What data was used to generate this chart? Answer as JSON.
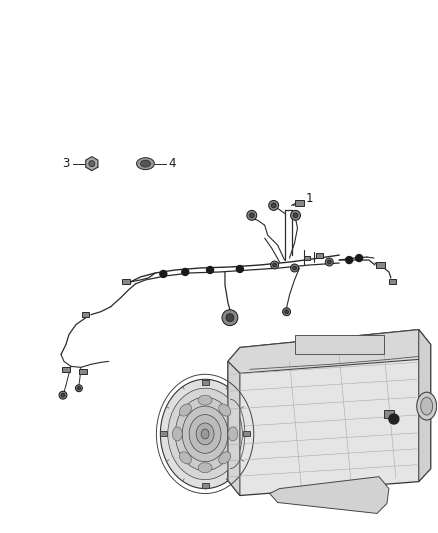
{
  "background_color": "#ffffff",
  "fig_width": 4.38,
  "fig_height": 5.33,
  "dpi": 100,
  "line_color": "#2a2a2a",
  "text_color": "#1a1a1a",
  "font_size_labels": 8.5,
  "lw_wire": 0.9,
  "lw_thin": 0.6,
  "connector_color": "#1a1a1a",
  "fill_color": "#cccccc"
}
